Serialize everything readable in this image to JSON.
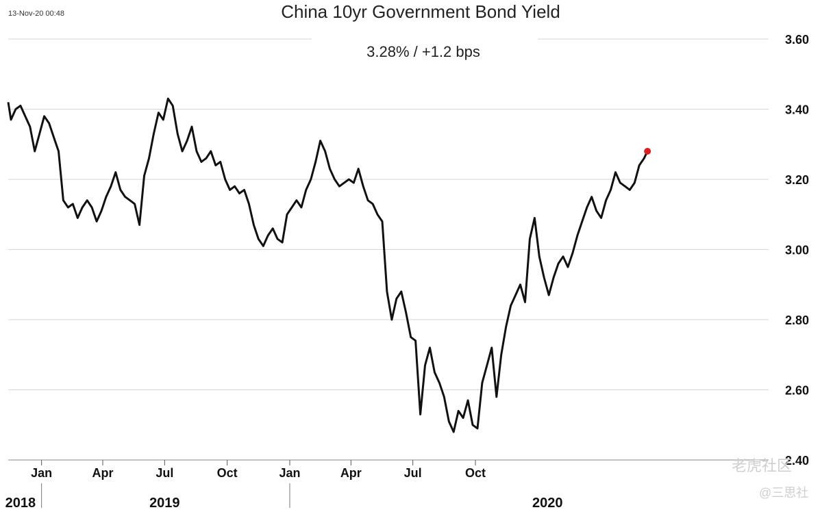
{
  "header": {
    "timestamp": "13-Nov-20 00:48",
    "title": "China 10yr Government Bond Yield",
    "subtitle": "3.28%  /  +1.2 bps"
  },
  "watermark": {
    "text1": "老虎社区",
    "text2": "@三思社"
  },
  "colors": {
    "line": "#111111",
    "last_point": "#e02020",
    "grid": "#d6d6d6"
  },
  "chart_data": {
    "type": "line",
    "title": "China 10yr Government Bond Yield",
    "xlabel": "",
    "ylabel": "",
    "ylim": [
      2.4,
      3.6
    ],
    "yticks": [
      2.4,
      2.6,
      2.8,
      3.0,
      3.2,
      3.4,
      3.6
    ],
    "ytick_labels": [
      "2.40",
      "2.60",
      "2.80",
      "3.00",
      "3.20",
      "3.40",
      "3.60"
    ],
    "grid": true,
    "xlim": [
      "2017-11-13",
      "2020-11-13"
    ],
    "month_ticks": [
      {
        "date": "2018-01-01",
        "label": "Jan"
      },
      {
        "date": "2018-04-01",
        "label": "Apr"
      },
      {
        "date": "2018-07-01",
        "label": "Jul"
      },
      {
        "date": "2018-10-01",
        "label": "Oct"
      },
      {
        "date": "2019-01-01",
        "label": "Jan"
      },
      {
        "date": "2019-04-01",
        "label": "Apr"
      },
      {
        "date": "2019-07-01",
        "label": "Jul"
      },
      {
        "date": "2019-10-01",
        "label": "Oct"
      }
    ],
    "year_labels": [
      {
        "date": "2017-12-01",
        "label": "2018"
      },
      {
        "date": "2018-07-01",
        "label": "2019"
      },
      {
        "date": "2020-01-15",
        "label": "2020"
      }
    ],
    "year_dividers": [
      "2018-01-01",
      "2019-01-01"
    ],
    "series": [
      {
        "points": [
          [
            "2017-11-13",
            3.42
          ],
          [
            "2017-11-17",
            3.37
          ],
          [
            "2017-11-24",
            3.4
          ],
          [
            "2017-12-01",
            3.41
          ],
          [
            "2017-12-08",
            3.38
          ],
          [
            "2017-12-15",
            3.35
          ],
          [
            "2017-12-22",
            3.28
          ],
          [
            "2017-12-29",
            3.33
          ],
          [
            "2018-01-05",
            3.38
          ],
          [
            "2018-01-12",
            3.36
          ],
          [
            "2018-01-19",
            3.32
          ],
          [
            "2018-01-26",
            3.28
          ],
          [
            "2018-02-02",
            3.14
          ],
          [
            "2018-02-09",
            3.12
          ],
          [
            "2018-02-16",
            3.13
          ],
          [
            "2018-02-23",
            3.09
          ],
          [
            "2018-03-02",
            3.12
          ],
          [
            "2018-03-09",
            3.14
          ],
          [
            "2018-03-16",
            3.12
          ],
          [
            "2018-03-23",
            3.08
          ],
          [
            "2018-03-30",
            3.11
          ],
          [
            "2018-04-06",
            3.15
          ],
          [
            "2018-04-13",
            3.18
          ],
          [
            "2018-04-20",
            3.22
          ],
          [
            "2018-04-27",
            3.17
          ],
          [
            "2018-05-04",
            3.15
          ],
          [
            "2018-05-11",
            3.14
          ],
          [
            "2018-05-18",
            3.13
          ],
          [
            "2018-05-25",
            3.07
          ],
          [
            "2018-06-01",
            3.21
          ],
          [
            "2018-06-08",
            3.26
          ],
          [
            "2018-06-15",
            3.33
          ],
          [
            "2018-06-22",
            3.39
          ],
          [
            "2018-06-29",
            3.37
          ],
          [
            "2018-07-06",
            3.43
          ],
          [
            "2018-07-13",
            3.41
          ],
          [
            "2018-07-20",
            3.33
          ],
          [
            "2018-07-27",
            3.28
          ],
          [
            "2018-08-03",
            3.31
          ],
          [
            "2018-08-10",
            3.35
          ],
          [
            "2018-08-17",
            3.28
          ],
          [
            "2018-08-24",
            3.25
          ],
          [
            "2018-08-31",
            3.26
          ],
          [
            "2018-09-07",
            3.28
          ],
          [
            "2018-09-14",
            3.24
          ],
          [
            "2018-09-21",
            3.25
          ],
          [
            "2018-09-28",
            3.2
          ],
          [
            "2018-10-05",
            3.17
          ],
          [
            "2018-10-12",
            3.18
          ],
          [
            "2018-10-19",
            3.16
          ],
          [
            "2018-10-26",
            3.17
          ],
          [
            "2018-11-02",
            3.13
          ],
          [
            "2018-11-09",
            3.07
          ],
          [
            "2018-11-16",
            3.03
          ],
          [
            "2018-11-23",
            3.01
          ],
          [
            "2018-11-30",
            3.04
          ],
          [
            "2018-12-07",
            3.06
          ],
          [
            "2018-12-14",
            3.03
          ],
          [
            "2018-12-21",
            3.02
          ],
          [
            "2018-12-28",
            3.1
          ],
          [
            "2019-01-04",
            3.12
          ],
          [
            "2019-01-11",
            3.14
          ],
          [
            "2019-01-18",
            3.12
          ],
          [
            "2019-01-25",
            3.17
          ],
          [
            "2019-02-01",
            3.2
          ],
          [
            "2019-02-08",
            3.25
          ],
          [
            "2019-02-15",
            3.31
          ],
          [
            "2019-02-22",
            3.28
          ],
          [
            "2019-03-01",
            3.23
          ],
          [
            "2019-03-08",
            3.2
          ],
          [
            "2019-03-15",
            3.18
          ],
          [
            "2019-03-22",
            3.19
          ],
          [
            "2019-03-29",
            3.2
          ],
          [
            "2019-04-05",
            3.19
          ],
          [
            "2019-04-12",
            3.23
          ],
          [
            "2019-04-19",
            3.18
          ],
          [
            "2019-04-26",
            3.14
          ],
          [
            "2019-05-03",
            3.13
          ],
          [
            "2019-05-10",
            3.1
          ],
          [
            "2019-05-17",
            3.08
          ],
          [
            "2019-05-24",
            2.88
          ],
          [
            "2019-05-31",
            2.8
          ],
          [
            "2019-06-07",
            2.86
          ],
          [
            "2019-06-14",
            2.88
          ],
          [
            "2019-06-21",
            2.82
          ],
          [
            "2019-06-28",
            2.75
          ],
          [
            "2019-07-05",
            2.74
          ],
          [
            "2019-07-12",
            2.53
          ],
          [
            "2019-07-19",
            2.67
          ],
          [
            "2019-07-26",
            2.72
          ],
          [
            "2019-08-02",
            2.65
          ],
          [
            "2019-08-09",
            2.62
          ],
          [
            "2019-08-16",
            2.58
          ],
          [
            "2019-08-23",
            2.51
          ],
          [
            "2019-08-30",
            2.48
          ],
          [
            "2019-09-06",
            2.54
          ],
          [
            "2019-09-13",
            2.52
          ],
          [
            "2019-09-20",
            2.57
          ],
          [
            "2019-09-27",
            2.5
          ],
          [
            "2019-10-04",
            2.49
          ],
          [
            "2019-10-11",
            2.62
          ],
          [
            "2019-10-18",
            2.67
          ],
          [
            "2019-10-25",
            2.72
          ],
          [
            "2019-11-01",
            2.58
          ],
          [
            "2019-11-08",
            2.7
          ],
          [
            "2019-11-15",
            2.78
          ],
          [
            "2019-11-22",
            2.84
          ],
          [
            "2019-11-29",
            2.87
          ],
          [
            "2019-12-06",
            2.9
          ],
          [
            "2019-12-13",
            2.85
          ],
          [
            "2019-12-20",
            3.03
          ],
          [
            "2019-12-27",
            3.09
          ],
          [
            "2020-01-03",
            2.98
          ],
          [
            "2020-01-10",
            2.92
          ],
          [
            "2020-01-17",
            2.87
          ],
          [
            "2020-01-24",
            2.92
          ],
          [
            "2020-01-31",
            2.96
          ],
          [
            "2020-02-07",
            2.98
          ],
          [
            "2020-02-14",
            2.95
          ],
          [
            "2020-02-21",
            2.99
          ],
          [
            "2020-02-28",
            3.04
          ],
          [
            "2020-03-06",
            3.08
          ],
          [
            "2020-03-13",
            3.12
          ],
          [
            "2020-03-20",
            3.15
          ],
          [
            "2020-03-27",
            3.11
          ],
          [
            "2020-04-03",
            3.09
          ],
          [
            "2020-04-10",
            3.14
          ],
          [
            "2020-04-17",
            3.17
          ],
          [
            "2020-04-24",
            3.22
          ],
          [
            "2020-05-01",
            3.19
          ],
          [
            "2020-05-08",
            3.18
          ],
          [
            "2020-05-15",
            3.17
          ],
          [
            "2020-05-22",
            3.19
          ],
          [
            "2020-05-29",
            3.24
          ],
          [
            "2020-06-05",
            3.26
          ],
          [
            "2020-06-10",
            3.28
          ]
        ]
      }
    ],
    "last_point": [
      "2020-06-10",
      3.28
    ]
  }
}
